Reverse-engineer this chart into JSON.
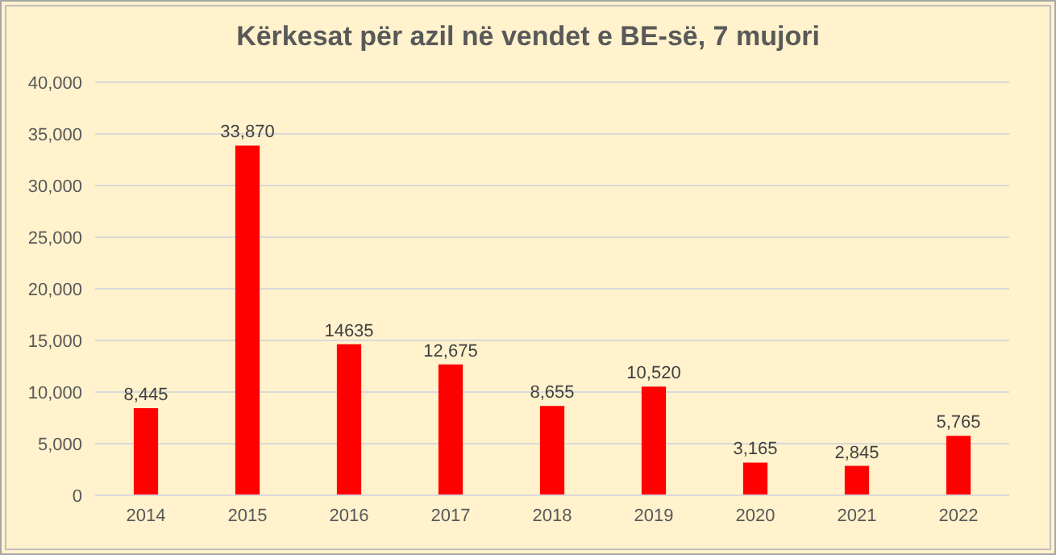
{
  "chart_data": {
    "type": "bar",
    "title": "Kërkesat për azil në vendet e BE-së, 7 mujori",
    "categories": [
      "2014",
      "2015",
      "2016",
      "2017",
      "2018",
      "2019",
      "2020",
      "2021",
      "2022"
    ],
    "values": [
      8445,
      33870,
      14635,
      12675,
      8655,
      10520,
      3165,
      2845,
      5765
    ],
    "value_labels": [
      "8,445",
      "33,870",
      "14635",
      "12,675",
      "8,655",
      "10,520",
      "3,165",
      "2,845",
      "5,765"
    ],
    "color": "#ff0000",
    "ylim": [
      0,
      40000
    ],
    "yticks": [
      0,
      {
        "value": 5000,
        "label": "5,000"
      },
      {
        "value": 10000,
        "label": "10,000"
      },
      {
        "value": 15000,
        "label": "15,000"
      },
      {
        "value": 20000,
        "label": "20,000"
      },
      {
        "value": 25000,
        "label": "25,000"
      },
      {
        "value": 30000,
        "label": "30,000"
      },
      {
        "value": 35000,
        "label": "35,000"
      },
      {
        "value": 40000,
        "label": "40,000"
      }
    ],
    "grid": "y"
  }
}
